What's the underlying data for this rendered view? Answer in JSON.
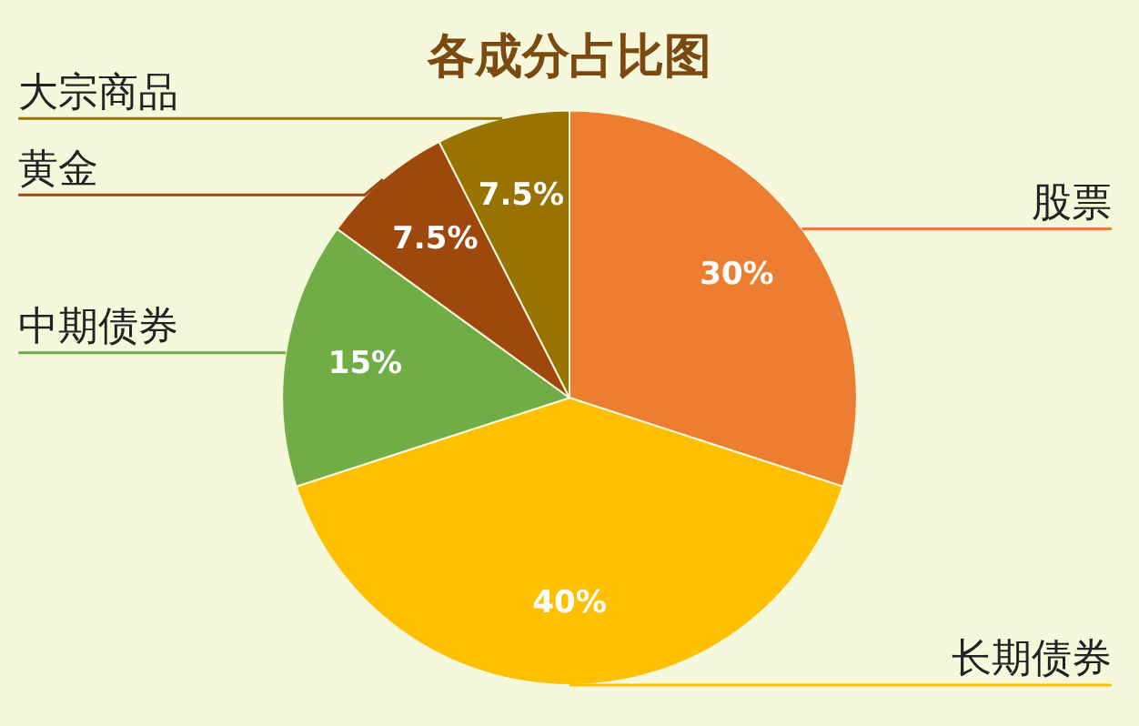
{
  "chart_data": {
    "type": "pie",
    "title": "各成分占比图",
    "categories": [
      "股票",
      "长期债券",
      "中期债券",
      "黄金",
      "大宗商品"
    ],
    "values": [
      30,
      40,
      15,
      7.5,
      7.5
    ],
    "colors": [
      "#ed7d31",
      "#ffc000",
      "#70ad47",
      "#9e480e",
      "#997300"
    ],
    "value_labels": [
      "30%",
      "40%",
      "15%",
      "7.5%",
      "7.5%"
    ],
    "legend": false
  }
}
